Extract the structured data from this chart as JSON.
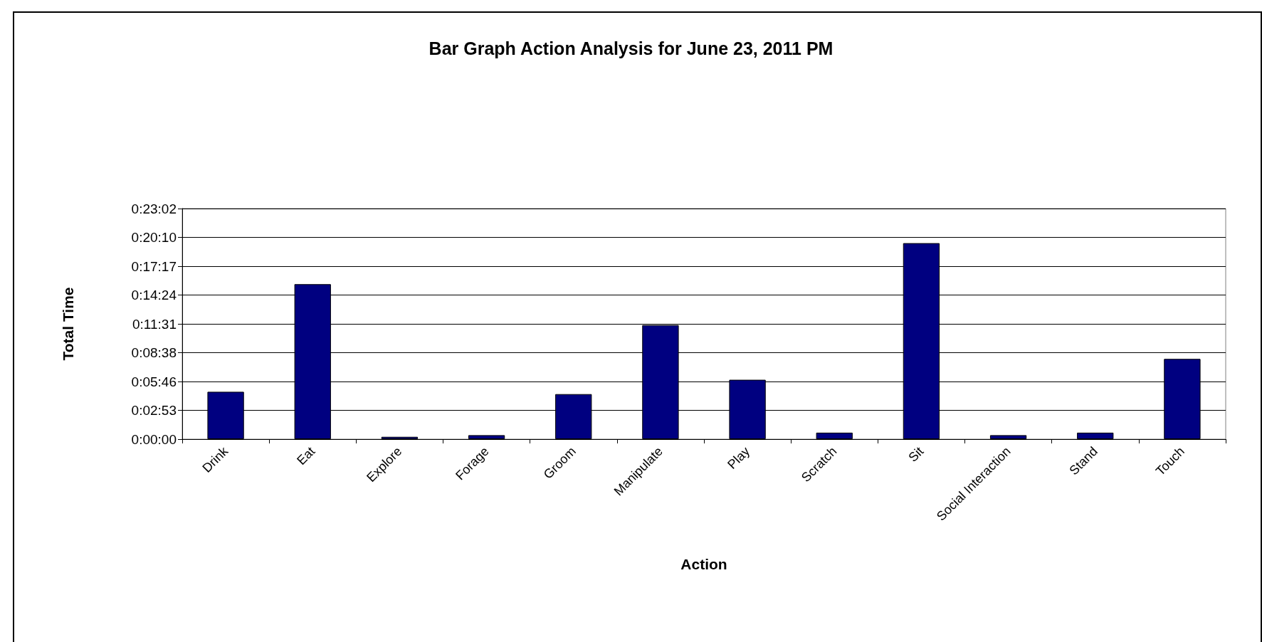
{
  "chart_data": {
    "type": "bar",
    "title": "Bar Graph Action Analysis for June 23, 2011 PM",
    "xlabel": "Action",
    "ylabel": "Total Time",
    "categories": [
      "Drink",
      "Eat",
      "Explore",
      "Forage",
      "Groom",
      "Manipulate",
      "Play",
      "Scratch",
      "Sit",
      "Social Interaction",
      "Stand",
      "Touch"
    ],
    "values": [
      284,
      929,
      14,
      24,
      270,
      684,
      356,
      39,
      1175,
      24,
      39,
      481
    ],
    "color": "#000080",
    "ylim": [
      0,
      1382.4
    ],
    "yticks": [
      {
        "value": 0,
        "label": "0:00:00"
      },
      {
        "value": 172.8,
        "label": "0:02:53"
      },
      {
        "value": 345.6,
        "label": "0:05:46"
      },
      {
        "value": 518.4,
        "label": "0:08:38"
      },
      {
        "value": 691.2,
        "label": "0:11:31"
      },
      {
        "value": 864,
        "label": "0:14:24"
      },
      {
        "value": 1036.8,
        "label": "0:17:17"
      },
      {
        "value": 1209.6,
        "label": "0:20:10"
      },
      {
        "value": 1382.4,
        "label": "0:23:02"
      }
    ],
    "grid": "y"
  }
}
